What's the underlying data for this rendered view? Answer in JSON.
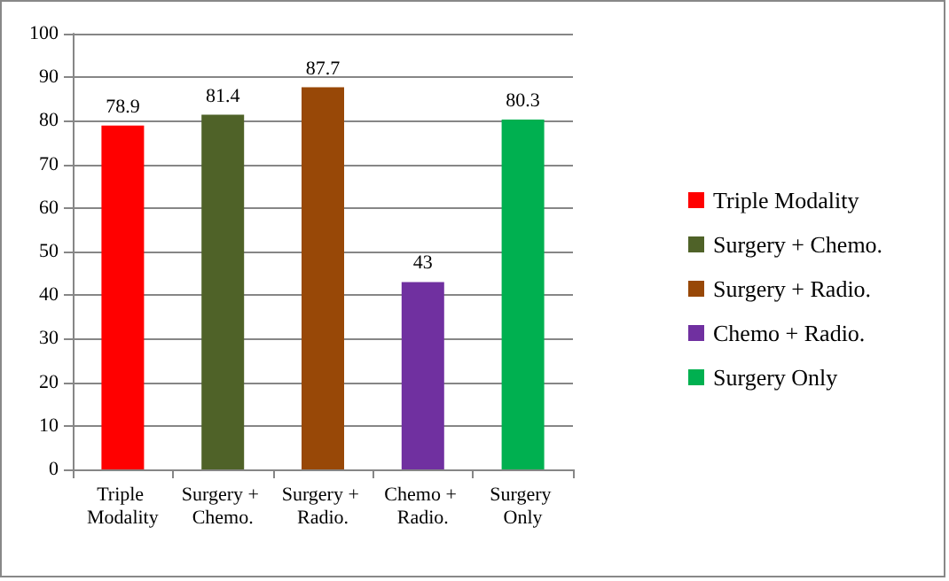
{
  "chart_data": {
    "type": "bar",
    "categories": [
      "Triple Modality",
      "Surgery + Chemo.",
      "Surgery + Radio.",
      "Chemo + Radio.",
      "Surgery Only"
    ],
    "series": [
      {
        "name": "Triple Modality",
        "color": "#ff0000",
        "values": [
          78.9,
          null,
          null,
          null,
          null
        ]
      },
      {
        "name": "Surgery + Chemo.",
        "color": "#4f6228",
        "values": [
          null,
          81.4,
          null,
          null,
          null
        ]
      },
      {
        "name": "Surgery + Radio.",
        "color": "#984807",
        "values": [
          null,
          null,
          87.7,
          null,
          null
        ]
      },
      {
        "name": "Chemo + Radio.",
        "color": "#7030a0",
        "values": [
          null,
          null,
          null,
          43,
          null
        ]
      },
      {
        "name": "Surgery Only",
        "color": "#00b050",
        "values": [
          null,
          null,
          null,
          null,
          80.3
        ]
      }
    ],
    "ylim": [
      0,
      100
    ],
    "yticks": [
      0,
      10,
      20,
      30,
      40,
      50,
      60,
      70,
      80,
      90,
      100
    ],
    "grid": "y",
    "legend": "right",
    "data_labels": true
  }
}
